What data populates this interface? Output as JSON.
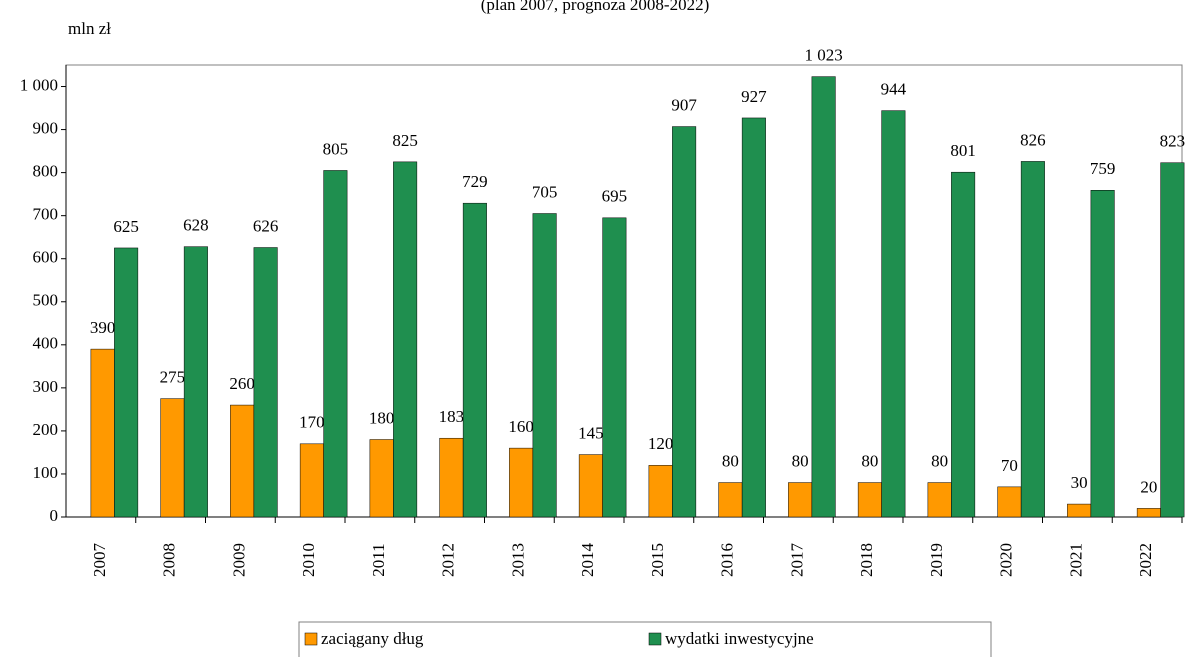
{
  "chart_data": {
    "type": "bar",
    "subtitle": "(plan 2007, prognoza 2008-2022)",
    "y_label": "mln zł",
    "categories": [
      "2007",
      "2008",
      "2009",
      "2010",
      "2011",
      "2012",
      "2013",
      "2014",
      "2015",
      "2016",
      "2017",
      "2018",
      "2019",
      "2020",
      "2021",
      "2022"
    ],
    "series": [
      {
        "name": "zaciągany dług",
        "color": "#ff9900",
        "values": [
          390,
          275,
          260,
          170,
          180,
          183,
          160,
          145,
          120,
          80,
          80,
          80,
          80,
          70,
          30,
          20
        ]
      },
      {
        "name": "wydatki inwestycyjne",
        "color": "#1f8f4f",
        "values": [
          625,
          628,
          626,
          805,
          825,
          729,
          705,
          695,
          907,
          927,
          1023,
          944,
          801,
          826,
          759,
          823
        ],
        "value_labels": [
          "625",
          "628",
          "626",
          "805",
          "825",
          "729",
          "705",
          "695",
          "907",
          "927",
          "1 023",
          "944",
          "801",
          "826",
          "759",
          "823"
        ]
      }
    ],
    "ylim": [
      0,
      1050
    ],
    "yticks": [
      0,
      100,
      200,
      300,
      400,
      500,
      600,
      700,
      800,
      900,
      {
        "value": 1000,
        "label": "1 000"
      }
    ],
    "legend": "bottom"
  }
}
